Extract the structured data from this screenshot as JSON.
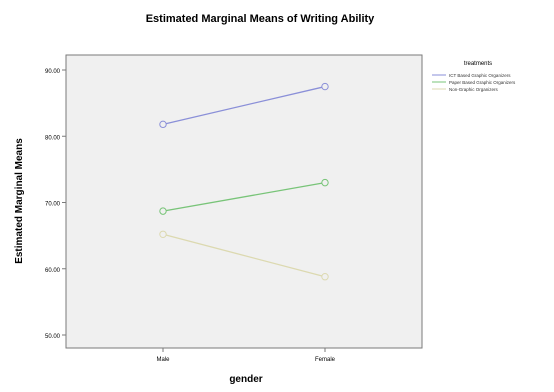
{
  "chart_data": {
    "type": "line",
    "title": "Estimated Marginal Means of Writing Ability",
    "xlabel": "gender",
    "ylabel": "Estimated Marginal Means",
    "categories": [
      "Male",
      "Female"
    ],
    "ylim": [
      50,
      90
    ],
    "yticks": [
      50,
      60,
      70,
      80,
      90
    ],
    "ytick_labels": [
      "50.00",
      "60.00",
      "70.00",
      "80.00",
      "90.00"
    ],
    "legend_title": "treatments",
    "legend_position": "right",
    "grid": false,
    "series": [
      {
        "name": "ICT Based Graphic Organizers",
        "color": "#8a8fd8",
        "values": [
          81.8,
          87.5
        ]
      },
      {
        "name": "Paper Based Graphic Organizers",
        "color": "#78c478",
        "values": [
          68.7,
          73.0
        ]
      },
      {
        "name": "Non-Graphic Organizers",
        "color": "#dcd9b0",
        "values": [
          65.2,
          58.8
        ]
      }
    ]
  }
}
